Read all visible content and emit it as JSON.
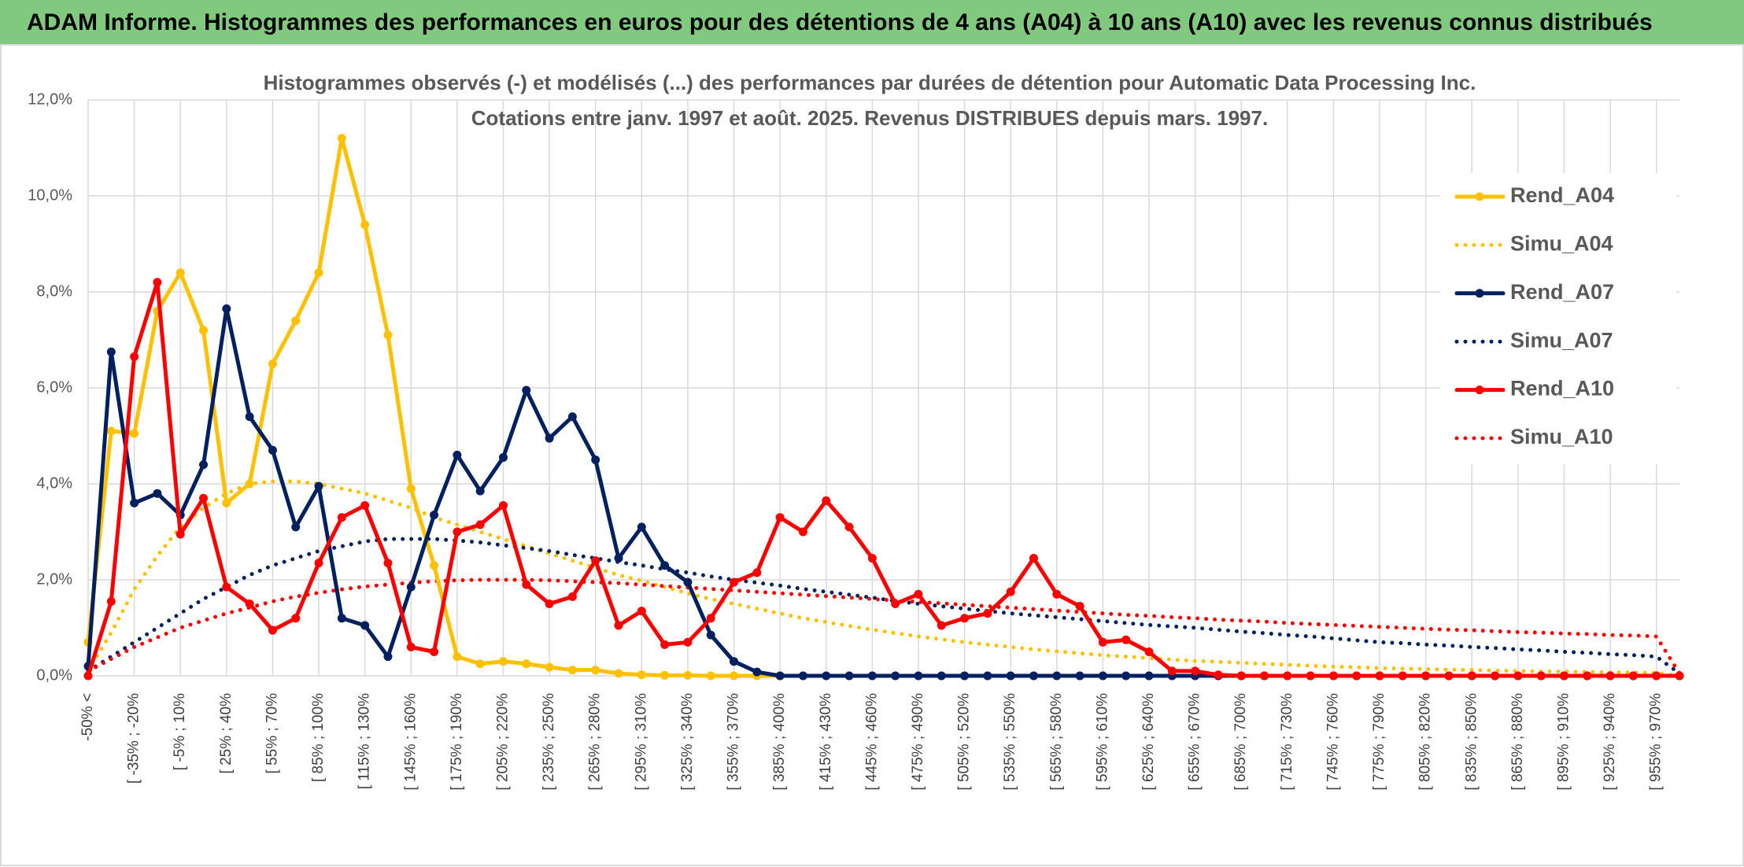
{
  "chart_data": {
    "type": "line",
    "header": "ADAM Informe. Histogrammes des performances en euros pour des détentions de 4 ans (A04) à 10 ans (A10) avec les revenus connus distribués",
    "title": "Histogrammes observés (-) et modélisés (...) des performances par durées de détention pour Automatic Data Processing Inc.",
    "subtitle": "Cotations entre janv. 1997 et août. 2025. Revenus DISTRIBUES depuis mars. 1997.",
    "categories": [
      "-50% <",
      null,
      "[ -35% ; -20%",
      null,
      "[ -5% ; 10%",
      null,
      "[ 25% ; 40%",
      null,
      "[ 55% ; 70%",
      null,
      "[ 85% ; 100%",
      null,
      "[ 115% ; 130%",
      null,
      "[ 145% ; 160%",
      null,
      "[ 175% ; 190%",
      null,
      "[ 205% ; 220%",
      null,
      "[ 235% ; 250%",
      null,
      "[ 265% ; 280%",
      null,
      "[ 295% ; 310%",
      null,
      "[ 325% ; 340%",
      null,
      "[ 355% ; 370%",
      null,
      "[ 385% ; 400%",
      null,
      "[ 415% ; 430%",
      null,
      "[ 445% ; 460%",
      null,
      "[ 475% ; 490%",
      null,
      "[ 505% ; 520%",
      null,
      "[ 535% ; 550%",
      null,
      "[ 565% ; 580%",
      null,
      "[ 595% ; 610%",
      null,
      "[ 625% ; 640%",
      null,
      "[ 655% ; 670%",
      null,
      "[ 685% ; 700%",
      null,
      "[ 715% ; 730%",
      null,
      "[ 745% ; 760%",
      null,
      "[ 775% ; 790%",
      null,
      "[ 805% ; 820%",
      null,
      "[ 835% ; 850%",
      null,
      "[ 865% ; 880%",
      null,
      "[ 895% ; 910%",
      null,
      "[ 925% ; 940%",
      null,
      "[ 955% ; 970%",
      null
    ],
    "ylim": [
      0,
      12
    ],
    "yticks": [
      {
        "value": 0,
        "label": "0,0%"
      },
      {
        "value": 2,
        "label": "2,0%"
      },
      {
        "value": 4,
        "label": "4,0%"
      },
      {
        "value": 6,
        "label": "6,0%"
      },
      {
        "value": 8,
        "label": "8,0%"
      },
      {
        "value": 10,
        "label": "10,0%"
      },
      {
        "value": 12,
        "label": "12,0%"
      }
    ],
    "grid": true,
    "legend": "right",
    "series": [
      {
        "name": "Rend_A04",
        "color": "#ffc000",
        "line_style": "solid",
        "values": [
          0.7,
          5.1,
          5.05,
          7.6,
          8.4,
          7.2,
          3.6,
          4.0,
          6.5,
          7.4,
          8.4,
          11.2,
          9.4,
          7.1,
          3.9,
          2.3,
          0.4,
          0.25,
          0.3,
          0.25,
          0.18,
          0.12,
          0.12,
          0.05,
          0.02,
          0.01,
          0.01,
          0,
          0,
          0,
          0,
          0,
          0,
          0,
          0,
          0,
          0,
          0,
          0,
          0,
          0,
          0,
          0,
          0,
          0,
          0,
          0,
          0,
          0,
          0,
          0,
          0,
          0,
          0,
          0,
          0,
          0,
          0,
          0,
          0,
          0,
          0,
          0,
          0,
          0,
          0,
          0,
          0,
          0,
          0
        ]
      },
      {
        "name": "Simu_A04",
        "color": "#ffc000",
        "line_style": "dotted",
        "values": [
          0.1,
          0.9,
          1.8,
          2.5,
          3.1,
          3.5,
          3.8,
          4.0,
          4.05,
          4.05,
          4.0,
          3.9,
          3.8,
          3.65,
          3.5,
          3.3,
          3.15,
          3.0,
          2.85,
          2.7,
          2.55,
          2.4,
          2.25,
          2.1,
          1.98,
          1.85,
          1.72,
          1.6,
          1.5,
          1.4,
          1.3,
          1.2,
          1.12,
          1.04,
          0.96,
          0.89,
          0.82,
          0.76,
          0.7,
          0.65,
          0.6,
          0.55,
          0.51,
          0.47,
          0.43,
          0.4,
          0.37,
          0.34,
          0.31,
          0.29,
          0.27,
          0.25,
          0.23,
          0.21,
          0.19,
          0.18,
          0.16,
          0.15,
          0.14,
          0.13,
          0.12,
          0.11,
          0.1,
          0.09,
          0.09,
          0.08,
          0.07,
          0.07,
          0.06,
          0
        ]
      },
      {
        "name": "Rend_A07",
        "color": "#002060",
        "line_style": "solid",
        "values": [
          0.2,
          6.75,
          3.6,
          3.8,
          3.35,
          4.4,
          7.65,
          5.4,
          4.7,
          3.1,
          3.95,
          1.2,
          1.05,
          0.4,
          1.85,
          3.35,
          4.6,
          3.85,
          4.55,
          5.95,
          4.95,
          5.4,
          4.5,
          2.45,
          3.1,
          2.3,
          1.95,
          0.85,
          0.3,
          0.08,
          0,
          0,
          0,
          0,
          0,
          0,
          0,
          0,
          0,
          0,
          0,
          0,
          0,
          0,
          0,
          0,
          0,
          0,
          0,
          0,
          0,
          0,
          0,
          0,
          0,
          0,
          0,
          0,
          0,
          0,
          0,
          0,
          0,
          0,
          0,
          0,
          0,
          0,
          0,
          0
        ]
      },
      {
        "name": "Simu_A07",
        "color": "#002060",
        "line_style": "dotted",
        "values": [
          0.1,
          0.4,
          0.7,
          1.0,
          1.3,
          1.6,
          1.85,
          2.1,
          2.3,
          2.45,
          2.6,
          2.7,
          2.8,
          2.85,
          2.85,
          2.85,
          2.82,
          2.78,
          2.72,
          2.66,
          2.6,
          2.52,
          2.45,
          2.37,
          2.3,
          2.22,
          2.15,
          2.07,
          2.0,
          1.94,
          1.88,
          1.81,
          1.75,
          1.69,
          1.63,
          1.56,
          1.5,
          1.45,
          1.4,
          1.35,
          1.3,
          1.26,
          1.22,
          1.18,
          1.14,
          1.1,
          1.06,
          1.03,
          1.0,
          0.96,
          0.92,
          0.89,
          0.85,
          0.82,
          0.78,
          0.74,
          0.7,
          0.68,
          0.65,
          0.63,
          0.6,
          0.58,
          0.55,
          0.53,
          0.5,
          0.48,
          0.45,
          0.43,
          0.4,
          0.05
        ]
      },
      {
        "name": "Rend_A10",
        "color": "#ff0000",
        "line_style": "solid",
        "values": [
          0,
          1.55,
          6.65,
          8.2,
          2.95,
          3.7,
          1.85,
          1.5,
          0.95,
          1.2,
          2.35,
          3.3,
          3.55,
          2.35,
          0.6,
          0.5,
          3.0,
          3.15,
          3.55,
          1.9,
          1.5,
          1.65,
          2.4,
          1.05,
          1.35,
          0.65,
          0.7,
          1.2,
          1.95,
          2.15,
          3.3,
          3.0,
          3.65,
          3.1,
          2.45,
          1.5,
          1.7,
          1.05,
          1.2,
          1.3,
          1.75,
          2.45,
          1.7,
          1.45,
          0.7,
          0.75,
          0.5,
          0.1,
          0.1,
          0.02,
          0,
          0,
          0,
          0,
          0,
          0,
          0,
          0,
          0,
          0,
          0,
          0,
          0,
          0,
          0,
          0,
          0,
          0,
          0,
          0
        ]
      },
      {
        "name": "Simu_A10",
        "color": "#ff0000",
        "line_style": "dotted",
        "values": [
          0.1,
          0.35,
          0.6,
          0.8,
          1.0,
          1.15,
          1.3,
          1.42,
          1.55,
          1.65,
          1.73,
          1.8,
          1.86,
          1.9,
          1.94,
          1.97,
          1.99,
          2.0,
          2.0,
          2.0,
          1.99,
          1.97,
          1.95,
          1.93,
          1.9,
          1.87,
          1.84,
          1.81,
          1.78,
          1.75,
          1.72,
          1.69,
          1.66,
          1.63,
          1.6,
          1.57,
          1.54,
          1.51,
          1.48,
          1.45,
          1.42,
          1.39,
          1.36,
          1.33,
          1.3,
          1.27,
          1.25,
          1.22,
          1.2,
          1.17,
          1.15,
          1.13,
          1.1,
          1.08,
          1.06,
          1.04,
          1.02,
          1.0,
          0.98,
          0.96,
          0.95,
          0.93,
          0.91,
          0.9,
          0.88,
          0.87,
          0.85,
          0.84,
          0.82,
          0.05
        ]
      }
    ]
  }
}
